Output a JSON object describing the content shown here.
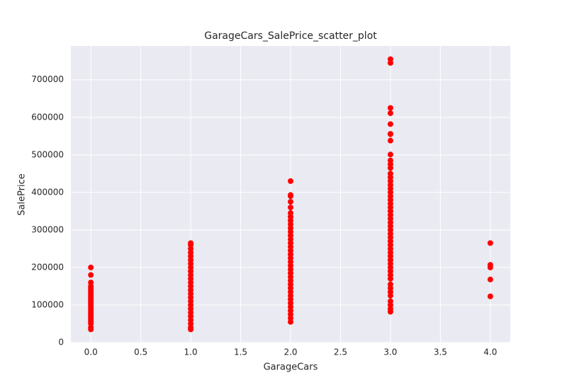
{
  "chart_data": {
    "type": "scatter",
    "title": "GarageCars_SalePrice_scatter_plot",
    "x_label": "GarageCars",
    "y_label": "SalePrice",
    "color": "#ff0000",
    "grid": true,
    "xlim": [
      -0.2,
      4.2
    ],
    "ylim": [
      0,
      790000
    ],
    "xticks": [
      {
        "value": 0,
        "label": "0.0"
      },
      {
        "value": 0.5,
        "label": "0.5"
      },
      {
        "value": 1,
        "label": "1.0"
      },
      {
        "value": 1.5,
        "label": "1.5"
      },
      {
        "value": 2,
        "label": "2.0"
      },
      {
        "value": 2.5,
        "label": "2.5"
      },
      {
        "value": 3,
        "label": "3.0"
      },
      {
        "value": 3.5,
        "label": "3.5"
      },
      {
        "value": 4,
        "label": "4.0"
      }
    ],
    "yticks": [
      0,
      100000,
      200000,
      300000,
      400000,
      500000,
      600000,
      700000
    ],
    "x": [
      0,
      0,
      0,
      0,
      0,
      0,
      0,
      0,
      0,
      0,
      0,
      0,
      0,
      0,
      0,
      0,
      0,
      0,
      0,
      0,
      0,
      0,
      0,
      0,
      0,
      0,
      1,
      1,
      1,
      1,
      1,
      1,
      1,
      1,
      1,
      1,
      1,
      1,
      1,
      1,
      1,
      1,
      1,
      1,
      1,
      1,
      1,
      1,
      1,
      1,
      1,
      2,
      2,
      2,
      2,
      2,
      2,
      2,
      2,
      2,
      2,
      2,
      2,
      2,
      2,
      2,
      2,
      2,
      2,
      2,
      2,
      2,
      2,
      2,
      2,
      2,
      2,
      2,
      2,
      2,
      2,
      2,
      2,
      2,
      2,
      2,
      3,
      3,
      3,
      3,
      3,
      3,
      3,
      3,
      3,
      3,
      3,
      3,
      3,
      3,
      3,
      3,
      3,
      3,
      3,
      3,
      3,
      3,
      3,
      3,
      3,
      3,
      3,
      3,
      3,
      3,
      3,
      3,
      3,
      3,
      3,
      3,
      3,
      3,
      3,
      3,
      3,
      3,
      3,
      3,
      3,
      3,
      3,
      3,
      3,
      4,
      4,
      4,
      4,
      4
    ],
    "y": [
      200000,
      180000,
      160000,
      150000,
      145000,
      140000,
      135000,
      130000,
      125000,
      120000,
      115000,
      110000,
      105000,
      100000,
      95000,
      90000,
      85000,
      80000,
      75000,
      70000,
      65000,
      60000,
      55000,
      50000,
      40000,
      35000,
      265000,
      260000,
      250000,
      240000,
      230000,
      220000,
      210000,
      200000,
      190000,
      180000,
      170000,
      160000,
      150000,
      140000,
      130000,
      120000,
      110000,
      100000,
      90000,
      80000,
      70000,
      60000,
      50000,
      40000,
      35000,
      430000,
      393000,
      390000,
      375000,
      360000,
      345000,
      335000,
      325000,
      315000,
      305000,
      295000,
      285000,
      275000,
      265000,
      255000,
      245000,
      235000,
      225000,
      215000,
      205000,
      195000,
      185000,
      175000,
      165000,
      155000,
      145000,
      135000,
      125000,
      115000,
      105000,
      95000,
      85000,
      75000,
      65000,
      55000,
      755000,
      745000,
      625000,
      611000,
      582000,
      556000,
      555000,
      538000,
      501000,
      485000,
      475000,
      465000,
      450000,
      440000,
      430000,
      420000,
      410000,
      400000,
      390000,
      380000,
      370000,
      360000,
      350000,
      340000,
      330000,
      320000,
      310000,
      300000,
      290000,
      280000,
      270000,
      260000,
      250000,
      240000,
      230000,
      220000,
      210000,
      200000,
      190000,
      180000,
      170000,
      155000,
      145000,
      135000,
      125000,
      110000,
      100000,
      90000,
      82000,
      265000,
      207000,
      200000,
      168000,
      123000
    ]
  }
}
